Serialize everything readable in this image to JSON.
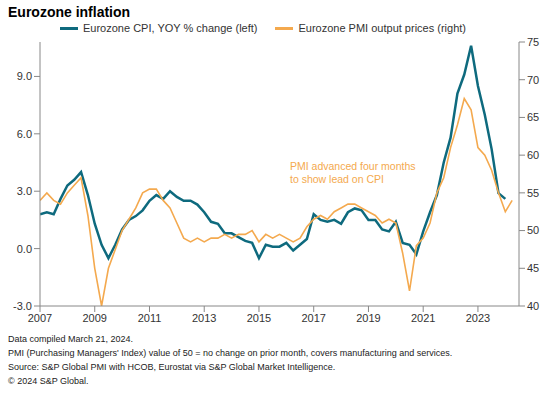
{
  "chart_data": {
    "type": "line",
    "title": "Eurozone inflation",
    "annotations": [
      "PMI advanced four months",
      "to show lead on CPI"
    ],
    "footnotes": [
      "Data compiled March 21, 2024.",
      "PMI (Purchasing Managers' Index) value of 50 = no change on prior month, covers manufacturing and services.",
      "Source: S&P Global PMI with HCOB, Eurostat via S&P Global Market Intelligence.",
      "© 2024 S&P Global."
    ],
    "x": [
      2007,
      2007.25,
      2007.5,
      2007.75,
      2008,
      2008.25,
      2008.5,
      2008.75,
      2009,
      2009.25,
      2009.5,
      2009.75,
      2010,
      2010.25,
      2010.5,
      2010.75,
      2011,
      2011.25,
      2011.5,
      2011.75,
      2012,
      2012.25,
      2012.5,
      2012.75,
      2013,
      2013.25,
      2013.5,
      2013.75,
      2014,
      2014.25,
      2014.5,
      2014.75,
      2015,
      2015.25,
      2015.5,
      2015.75,
      2016,
      2016.25,
      2016.5,
      2016.75,
      2017,
      2017.25,
      2017.5,
      2017.75,
      2018,
      2018.25,
      2018.5,
      2018.75,
      2019,
      2019.25,
      2019.5,
      2019.75,
      2020,
      2020.25,
      2020.5,
      2020.75,
      2021,
      2021.25,
      2021.5,
      2021.75,
      2022,
      2022.25,
      2022.5,
      2022.75,
      2023,
      2023.25,
      2023.5,
      2023.75,
      2024,
      2024.25
    ],
    "xlim": [
      2007,
      2024.5
    ],
    "xticks": [
      2007,
      2009,
      2011,
      2013,
      2015,
      2017,
      2019,
      2021,
      2023
    ],
    "ylim": [
      -3,
      10.8
    ],
    "yticks": [
      {
        "value": -3,
        "label": "-3.0"
      },
      {
        "value": 0,
        "label": "0.0"
      },
      {
        "value": 3,
        "label": "3.0"
      },
      {
        "value": 6,
        "label": "6.0"
      },
      {
        "value": 9,
        "label": "9.0"
      }
    ],
    "y2lim": [
      40,
      75
    ],
    "y2ticks": [
      40,
      45,
      50,
      55,
      60,
      65,
      70,
      75
    ],
    "grid": false,
    "legend": "top",
    "series": [
      {
        "name": "Eurozone CPI, YOY % change (left)",
        "color": "#0e6a7e",
        "axis": "y",
        "values": [
          1.8,
          1.9,
          1.8,
          2.6,
          3.3,
          3.6,
          4.0,
          2.8,
          1.3,
          0.2,
          -0.5,
          0.2,
          1.0,
          1.5,
          1.7,
          2.0,
          2.5,
          2.8,
          2.6,
          3.0,
          2.7,
          2.5,
          2.5,
          2.3,
          1.9,
          1.4,
          1.3,
          0.8,
          0.8,
          0.6,
          0.4,
          0.3,
          -0.5,
          0.2,
          0.1,
          0.1,
          0.3,
          -0.1,
          0.2,
          0.5,
          1.8,
          1.5,
          1.4,
          1.5,
          1.3,
          1.9,
          2.1,
          2.0,
          1.5,
          1.5,
          1.0,
          0.9,
          1.4,
          0.3,
          0.2,
          -0.3,
          0.9,
          1.9,
          2.8,
          4.5,
          5.8,
          8.1,
          9.1,
          10.6,
          8.5,
          7.0,
          5.2,
          2.9,
          2.6,
          null
        ]
      },
      {
        "name": "Eurozone PMI output prices (right)",
        "color": "#f4a94e",
        "axis": "y2",
        "values": [
          54,
          55,
          54,
          53.5,
          55,
          56,
          57,
          52,
          45,
          40,
          45,
          47.5,
          50,
          51.5,
          53,
          55,
          55.5,
          55.5,
          54,
          53,
          51,
          49,
          48.5,
          49,
          48.5,
          49,
          49,
          49.5,
          49,
          49.5,
          49.5,
          50,
          48.5,
          49.5,
          49,
          49.5,
          49,
          48.5,
          49,
          50.5,
          51.5,
          52,
          51.5,
          52.5,
          53,
          53.5,
          53.5,
          53,
          52.5,
          52,
          51,
          51.5,
          51,
          47,
          42,
          48,
          49,
          51,
          55,
          57,
          61,
          64,
          67.5,
          66,
          61,
          60,
          58,
          55,
          52.5,
          54
        ]
      }
    ]
  }
}
